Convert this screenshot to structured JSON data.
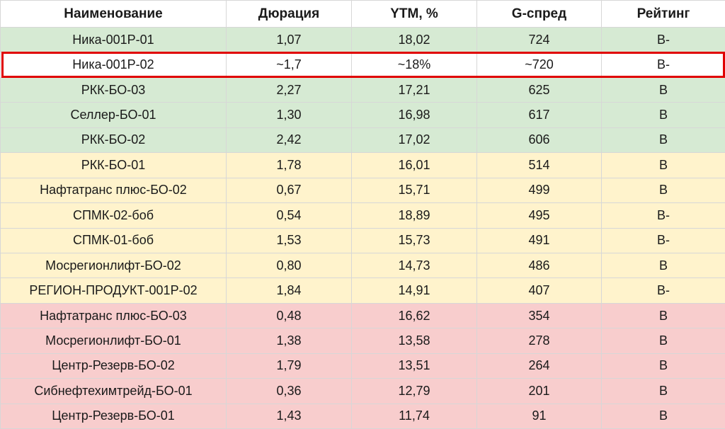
{
  "chart_data": {
    "type": "table",
    "columns": [
      "Наименование",
      "Дюрация",
      "YTM, %",
      "G-спред",
      "Рейтинг"
    ],
    "rows": [
      {
        "group": "green",
        "cells": [
          "Ника-001Р-01",
          "1,07",
          "18,02",
          "724",
          "B-"
        ]
      },
      {
        "group": "white",
        "cells": [
          "Ника-001Р-02",
          "~1,7",
          "~18%",
          "~720",
          "B-"
        ]
      },
      {
        "group": "green",
        "cells": [
          "РКК-БО-03",
          "2,27",
          "17,21",
          "625",
          "B"
        ]
      },
      {
        "group": "green",
        "cells": [
          "Селлер-БО-01",
          "1,30",
          "16,98",
          "617",
          "B"
        ]
      },
      {
        "group": "green",
        "cells": [
          "РКК-БО-02",
          "2,42",
          "17,02",
          "606",
          "B"
        ]
      },
      {
        "group": "yellow",
        "cells": [
          "РКК-БО-01",
          "1,78",
          "16,01",
          "514",
          "B"
        ]
      },
      {
        "group": "yellow",
        "cells": [
          "Нафтатранс плюс-БО-02",
          "0,67",
          "15,71",
          "499",
          "B"
        ]
      },
      {
        "group": "yellow",
        "cells": [
          "СПМК-02-боб",
          "0,54",
          "18,89",
          "495",
          "B-"
        ]
      },
      {
        "group": "yellow",
        "cells": [
          "СПМК-01-боб",
          "1,53",
          "15,73",
          "491",
          "B-"
        ]
      },
      {
        "group": "yellow",
        "cells": [
          "Мосрегионлифт-БО-02",
          "0,80",
          "14,73",
          "486",
          "B"
        ]
      },
      {
        "group": "yellow",
        "cells": [
          "РЕГИОН-ПРОДУКТ-001Р-02",
          "1,84",
          "14,91",
          "407",
          "B-"
        ]
      },
      {
        "group": "red",
        "cells": [
          "Нафтатранс плюс-БО-03",
          "0,48",
          "16,62",
          "354",
          "B"
        ]
      },
      {
        "group": "red",
        "cells": [
          "Мосрегионлифт-БО-01",
          "1,38",
          "13,58",
          "278",
          "B"
        ]
      },
      {
        "group": "red",
        "cells": [
          "Центр-Резерв-БО-02",
          "1,79",
          "13,51",
          "264",
          "B"
        ]
      },
      {
        "group": "red",
        "cells": [
          "Сибнефтехимтрейд-БО-01",
          "0,36",
          "12,79",
          "201",
          "B"
        ]
      },
      {
        "group": "red",
        "cells": [
          "Центр-Резерв-БО-01",
          "1,43",
          "11,74",
          "91",
          "B"
        ]
      }
    ],
    "highlighted_row": 1,
    "colors": {
      "green": "#d6ead3",
      "yellow": "#fff3cc",
      "red": "#f8cdcd",
      "white": "#ffffff",
      "highlight": "#e00000"
    }
  }
}
